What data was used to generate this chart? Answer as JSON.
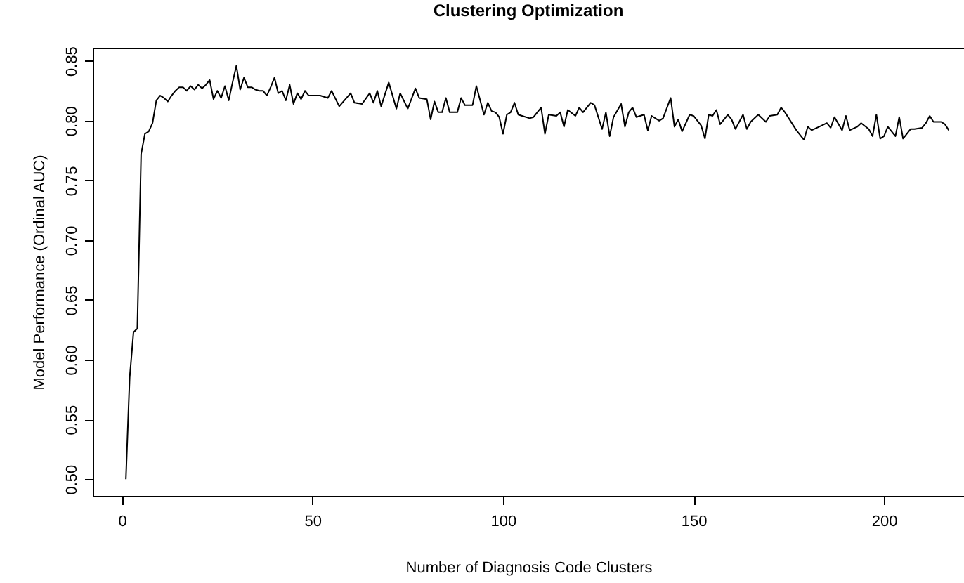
{
  "chart_data": {
    "type": "line",
    "title": "Clustering Optimization",
    "xlabel": "Number of Diagnosis Code Clusters",
    "ylabel": "Model Performance (Ordinal AUC)",
    "x": [
      1,
      2,
      3,
      4,
      5,
      6,
      7,
      8,
      9,
      10,
      11,
      12,
      13,
      14,
      15,
      16,
      17,
      18,
      19,
      20,
      21,
      22,
      23,
      24,
      25,
      26,
      27,
      28,
      29,
      30,
      31,
      32,
      33,
      34,
      35,
      36,
      37,
      38,
      39,
      40,
      41,
      42,
      43,
      44,
      45,
      46,
      47,
      48,
      49,
      50,
      52,
      54,
      55,
      57,
      60,
      61,
      63,
      65,
      66,
      67,
      68,
      70,
      71,
      72,
      73,
      75,
      77,
      78,
      80,
      81,
      82,
      83,
      84,
      85,
      86,
      88,
      89,
      90,
      92,
      93,
      95,
      96,
      97,
      98,
      99,
      100,
      101,
      102,
      103,
      104,
      105,
      107,
      108,
      110,
      111,
      112,
      114,
      115,
      116,
      117,
      119,
      120,
      121,
      123,
      124,
      126,
      127,
      128,
      129,
      131,
      132,
      133,
      134,
      135,
      137,
      138,
      139,
      141,
      142,
      144,
      145,
      146,
      147,
      149,
      150,
      152,
      153,
      154,
      155,
      156,
      157,
      159,
      160,
      161,
      163,
      164,
      165,
      167,
      169,
      170,
      172,
      173,
      174,
      176,
      177,
      179,
      180,
      181,
      183,
      185,
      186,
      187,
      189,
      190,
      191,
      193,
      194,
      196,
      197,
      198,
      199,
      200,
      201,
      203,
      204,
      205,
      207,
      208,
      210,
      211,
      212,
      213,
      215,
      216,
      217
    ],
    "values": [
      0.5,
      0.585,
      0.623,
      0.626,
      0.772,
      0.789,
      0.791,
      0.798,
      0.817,
      0.821,
      0.819,
      0.816,
      0.821,
      0.825,
      0.828,
      0.828,
      0.825,
      0.829,
      0.826,
      0.83,
      0.827,
      0.83,
      0.834,
      0.818,
      0.825,
      0.819,
      0.829,
      0.817,
      0.832,
      0.846,
      0.826,
      0.836,
      0.828,
      0.828,
      0.826,
      0.825,
      0.825,
      0.821,
      0.828,
      0.836,
      0.823,
      0.825,
      0.817,
      0.83,
      0.814,
      0.823,
      0.818,
      0.825,
      0.821,
      0.821,
      0.821,
      0.819,
      0.825,
      0.812,
      0.823,
      0.815,
      0.814,
      0.823,
      0.815,
      0.825,
      0.812,
      0.832,
      0.821,
      0.81,
      0.823,
      0.81,
      0.827,
      0.819,
      0.818,
      0.801,
      0.816,
      0.807,
      0.807,
      0.819,
      0.807,
      0.807,
      0.819,
      0.813,
      0.813,
      0.829,
      0.805,
      0.815,
      0.808,
      0.807,
      0.803,
      0.789,
      0.805,
      0.807,
      0.815,
      0.805,
      0.804,
      0.802,
      0.803,
      0.811,
      0.789,
      0.805,
      0.804,
      0.807,
      0.795,
      0.809,
      0.804,
      0.811,
      0.807,
      0.815,
      0.813,
      0.793,
      0.807,
      0.787,
      0.803,
      0.814,
      0.795,
      0.807,
      0.811,
      0.803,
      0.805,
      0.792,
      0.804,
      0.8,
      0.802,
      0.819,
      0.795,
      0.801,
      0.791,
      0.805,
      0.804,
      0.796,
      0.785,
      0.805,
      0.804,
      0.809,
      0.797,
      0.805,
      0.801,
      0.793,
      0.805,
      0.793,
      0.799,
      0.805,
      0.799,
      0.804,
      0.805,
      0.811,
      0.807,
      0.797,
      0.792,
      0.784,
      0.795,
      0.792,
      0.795,
      0.798,
      0.794,
      0.803,
      0.792,
      0.804,
      0.792,
      0.795,
      0.798,
      0.793,
      0.787,
      0.805,
      0.785,
      0.787,
      0.795,
      0.787,
      0.803,
      0.785,
      0.793,
      0.793,
      0.794,
      0.798,
      0.804,
      0.799,
      0.799,
      0.797,
      0.792
    ],
    "color": "#000000",
    "xlim": [
      -7.7,
      221
    ],
    "xticks": [
      0,
      50,
      100,
      150,
      200
    ],
    "ylim": [
      0.486,
      0.861
    ],
    "yticks": [
      {
        "value": 0.5,
        "label": "0.50"
      },
      {
        "value": 0.55,
        "label": "0.55"
      },
      {
        "value": 0.6,
        "label": "0.60"
      },
      {
        "value": 0.65,
        "label": "0.65"
      },
      {
        "value": 0.7,
        "label": "0.70"
      },
      {
        "value": 0.75,
        "label": "0.75"
      },
      {
        "value": 0.8,
        "label": "0.80"
      },
      {
        "value": 0.85,
        "label": "0.85"
      }
    ]
  }
}
